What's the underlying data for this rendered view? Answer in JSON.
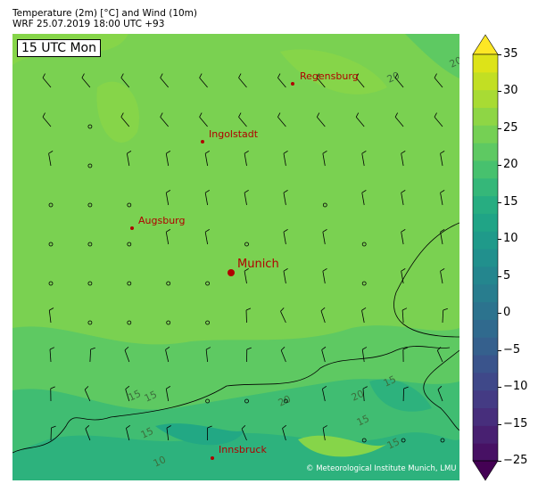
{
  "header": {
    "title": "Temperature (2m) [°C] and Wind (10m)",
    "subtitle": "WRF 25.07.2019 18:00 UTC +93"
  },
  "time_label": "15 UTC Mon",
  "copyright": "© Meteorological Institute Munich, LMU",
  "colorbar": {
    "colormap": "viridis",
    "ticks": [
      "35",
      "30",
      "25",
      "20",
      "15",
      "10",
      "5",
      "0",
      "−5",
      "−10",
      "−15",
      "−25"
    ],
    "extend": "both"
  },
  "cities": [
    {
      "name": "Regensburg",
      "major": false
    },
    {
      "name": "Ingolstadt",
      "major": false
    },
    {
      "name": "Augsburg",
      "major": false
    },
    {
      "name": "Munich",
      "major": true
    },
    {
      "name": "Innsbruck",
      "major": false
    }
  ],
  "contour_labels": [
    "20",
    "20",
    "15",
    "15",
    "15",
    "20",
    "15",
    "20",
    "15",
    "10",
    "15"
  ],
  "wind_grid": [
    "bbbbbbbbbbb",
    "bobbbbbbbbb",
    "bobbbbbbbbb",
    "ooobbbbobbb",
    "ooobbobbobb",
    "ooooobbbobb",
    "boooobbbbbb",
    "bbbbbbbbbbb",
    "bbbbooobbbb",
    "bbbbbbbbooo"
  ],
  "colors": {
    "city": "#b00000",
    "base_temp": "#7ad151"
  }
}
